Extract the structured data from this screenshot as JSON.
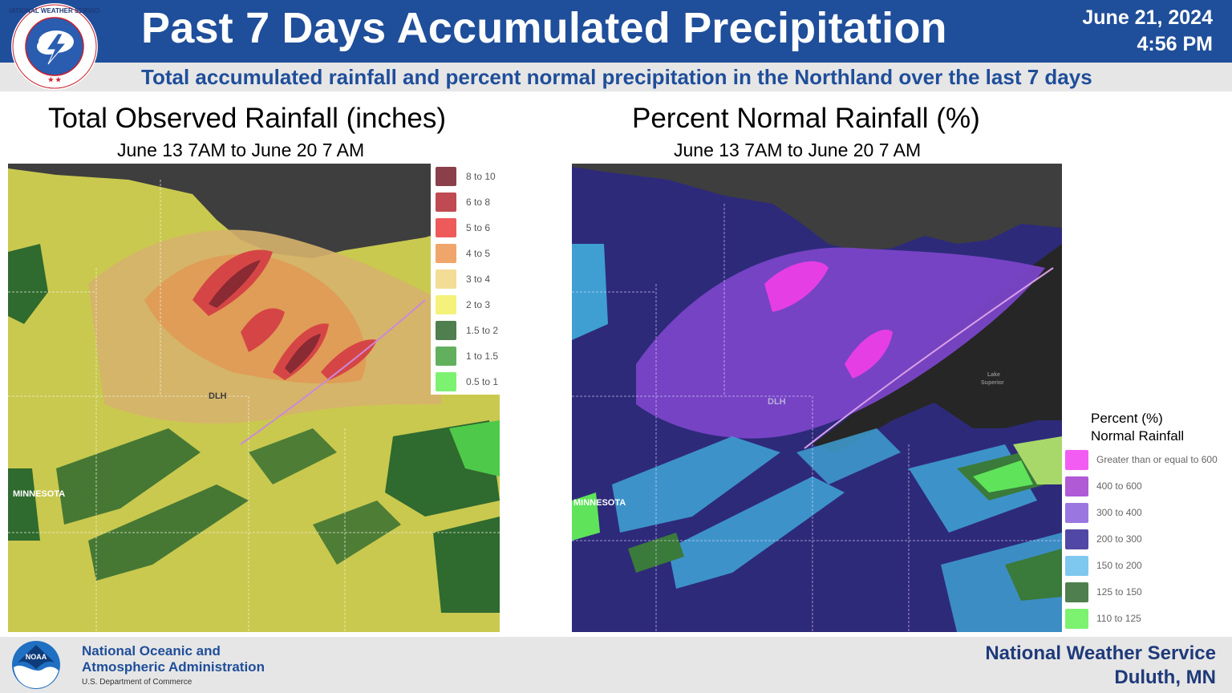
{
  "header": {
    "title": "Past 7 Days Accumulated Precipitation",
    "date": "June 21, 2024",
    "time": "4:56 PM",
    "subtitle": "Total accumulated rainfall and percent normal precipitation in the Northland over the last 7 days"
  },
  "logo": {
    "nws_ring_text": "NATIONAL WEATHER SERVICE",
    "noaa_text": "NOAA"
  },
  "left_panel": {
    "title": "Total Observed Rainfall (inches)",
    "period": "June 13 7AM to June 20 7 AM",
    "map_labels": {
      "city": "DLH",
      "state": "MINNESOTA"
    },
    "legend": [
      {
        "label": "8 to 10",
        "color": "#8b4049"
      },
      {
        "label": "6 to 8",
        "color": "#bf4a52"
      },
      {
        "label": "5 to 6",
        "color": "#ee5a5a"
      },
      {
        "label": "4 to 5",
        "color": "#f0a66a"
      },
      {
        "label": "3 to 4",
        "color": "#f3dd96"
      },
      {
        "label": "2 to 3",
        "color": "#f4f27a"
      },
      {
        "label": "1.5 to 2",
        "color": "#4f7f4f"
      },
      {
        "label": "1 to 1.5",
        "color": "#62b05e"
      },
      {
        "label": "0.5 to 1",
        "color": "#7df270"
      }
    ]
  },
  "right_panel": {
    "title": "Percent Normal Rainfall (%)",
    "period": "June 13 7AM to June 20 7 AM",
    "map_labels": {
      "city": "DLH",
      "state": "MINNESOTA",
      "lake_1": "Lake",
      "lake_2": "Superior"
    },
    "legend_title_1": "Percent (%)",
    "legend_title_2": "Normal Rainfall",
    "legend": [
      {
        "label": "Greater than or equal to 600",
        "color": "#f25cf2"
      },
      {
        "label": "400 to 600",
        "color": "#b05ad6"
      },
      {
        "label": "300 to 400",
        "color": "#9a77e0"
      },
      {
        "label": "200 to 300",
        "color": "#5148a6"
      },
      {
        "label": "150 to 200",
        "color": "#7ec8f0"
      },
      {
        "label": "125 to 150",
        "color": "#4f7f4f"
      },
      {
        "label": "110 to 125",
        "color": "#7df270"
      }
    ]
  },
  "footer": {
    "noaa_line1": "National Oceanic and",
    "noaa_line2": "Atmospheric Administration",
    "noaa_dept": "U.S. Department of Commerce",
    "nws_line1": "National Weather Service",
    "nws_line2": "Duluth, MN"
  }
}
